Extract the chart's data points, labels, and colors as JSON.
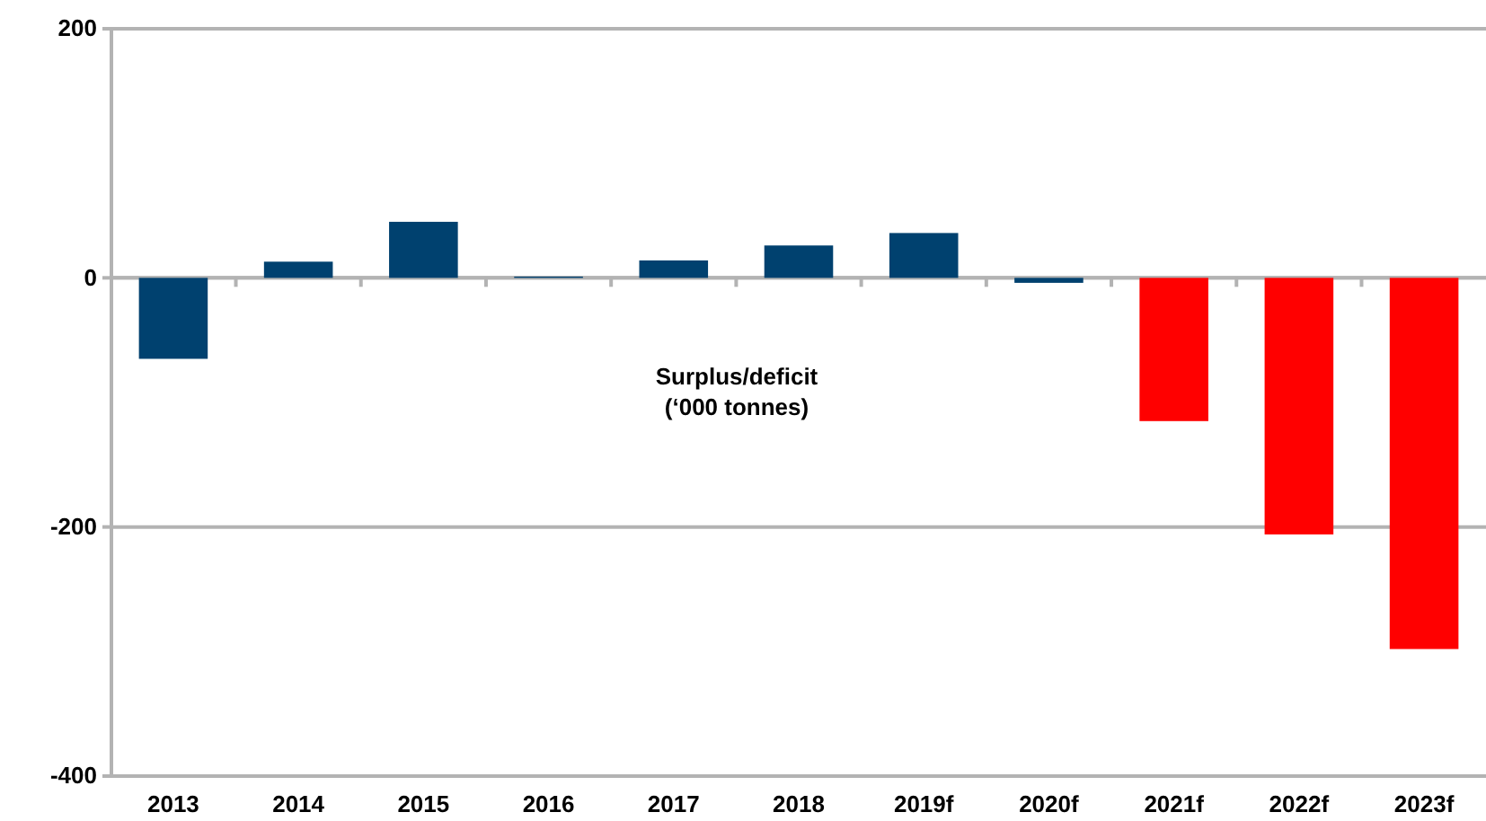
{
  "chart_data": {
    "type": "bar",
    "categories": [
      "2013",
      "2014",
      "2015",
      "2016",
      "2017",
      "2018",
      "2019f",
      "2020f",
      "2021f",
      "2022f",
      "2023f"
    ],
    "values": [
      -65,
      13,
      45,
      1,
      14,
      26,
      36,
      -4,
      -115,
      -206,
      -298
    ],
    "colors": [
      "#00416f",
      "#00416f",
      "#00416f",
      "#00416f",
      "#00416f",
      "#00416f",
      "#00416f",
      "#00416f",
      "#ff0000",
      "#ff0000",
      "#ff0000"
    ],
    "ylim": [
      -400,
      200
    ],
    "yticks": [
      -400,
      -200,
      0,
      200
    ],
    "grid": "y",
    "annotations": [
      "Surplus/deficit\n(‘000 tonnes)"
    ]
  }
}
